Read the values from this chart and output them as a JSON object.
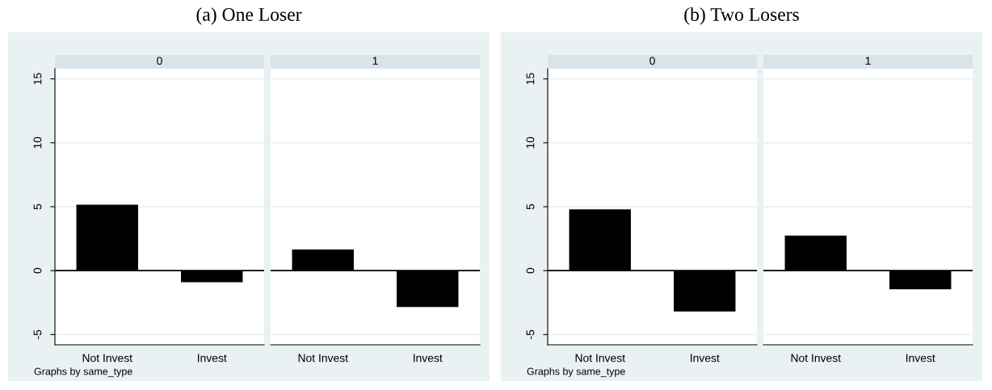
{
  "chart_data": [
    {
      "type": "bar",
      "title": "0",
      "annotations": [
        "(a) One Loser",
        "Graphs by same_type"
      ],
      "categories": [
        "Not Invest",
        "Invest"
      ],
      "values": [
        5.15,
        -0.9
      ],
      "color": "#000000",
      "ylim": [
        -5.8,
        15.8
      ],
      "yticks": [
        -5,
        0,
        5,
        10,
        15
      ],
      "grid": "y",
      "ref_lines": [
        {
          "axis": "y",
          "value": 0,
          "color": "#000000"
        }
      ]
    },
    {
      "type": "bar",
      "title": "1",
      "categories": [
        "Not Invest",
        "Invest"
      ],
      "values": [
        1.65,
        -2.85
      ],
      "color": "#000000",
      "ylim": [
        -5.8,
        15.8
      ],
      "yticks": [
        -5,
        0,
        5,
        10,
        15
      ],
      "grid": "y",
      "tick_labels": "x",
      "ref_lines": [
        {
          "axis": "y",
          "value": 0,
          "color": "#000000"
        }
      ]
    },
    {
      "type": "bar",
      "title": "0",
      "annotations": [
        "(b) Two Losers",
        "Graphs by same_type"
      ],
      "categories": [
        "Not Invest",
        "Invest"
      ],
      "values": [
        4.8,
        -3.2
      ],
      "color": "#000000",
      "ylim": [
        -5.8,
        15.8
      ],
      "yticks": [
        -5,
        0,
        5,
        10,
        15
      ],
      "grid": "y",
      "ref_lines": [
        {
          "axis": "y",
          "value": 0,
          "color": "#000000"
        }
      ]
    },
    {
      "type": "bar",
      "title": "1",
      "categories": [
        "Not Invest",
        "Invest"
      ],
      "values": [
        2.75,
        -1.45
      ],
      "color": "#000000",
      "ylim": [
        -5.8,
        15.8
      ],
      "yticks": [
        -5,
        0,
        5,
        10,
        15
      ],
      "grid": "y",
      "tick_labels": "x",
      "ref_lines": [
        {
          "axis": "y",
          "value": 0,
          "color": "#000000"
        }
      ]
    }
  ]
}
